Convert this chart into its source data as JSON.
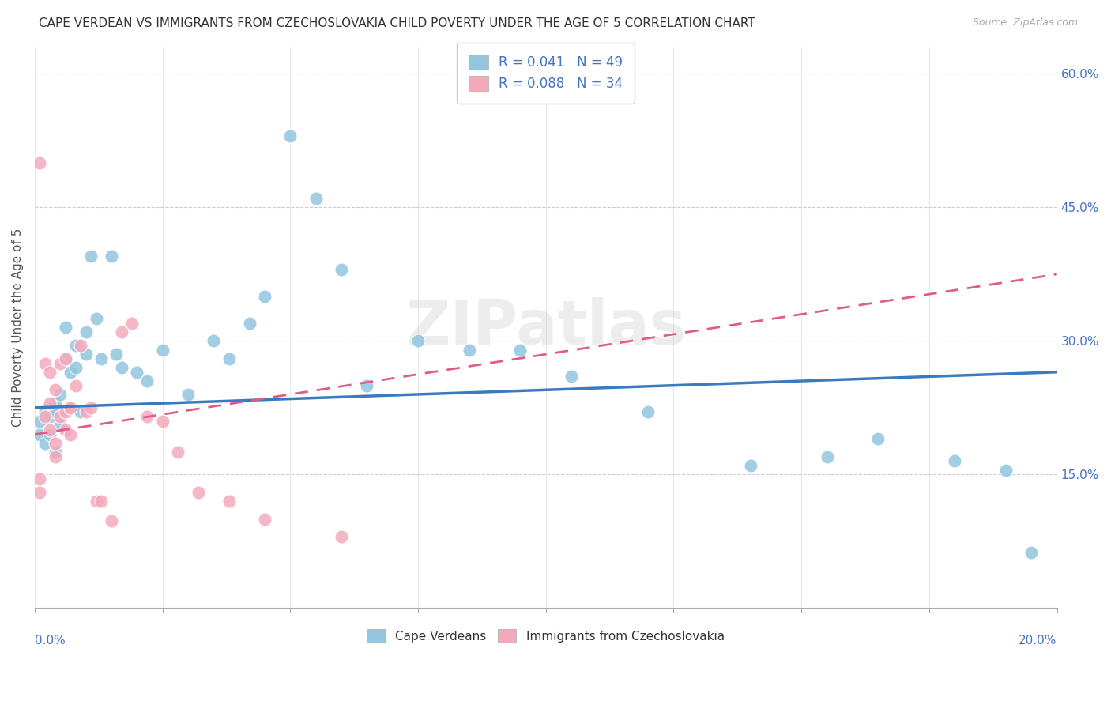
{
  "title": "CAPE VERDEAN VS IMMIGRANTS FROM CZECHOSLOVAKIA CHILD POVERTY UNDER THE AGE OF 5 CORRELATION CHART",
  "source": "Source: ZipAtlas.com",
  "ylabel": "Child Poverty Under the Age of 5",
  "legend1_label": "R = 0.041   N = 49",
  "legend2_label": "R = 0.088   N = 34",
  "legend_bottom_label1": "Cape Verdeans",
  "legend_bottom_label2": "Immigrants from Czechoslovakia",
  "blue_color": "#92c5de",
  "pink_color": "#f4a9bb",
  "blue_line_color": "#3a7bbf",
  "pink_line_color": "#e05a8a",
  "axis_label_color": "#4472c4",
  "watermark": "ZIPatlas",
  "blue_scatter_x": [
    0.001,
    0.001,
    0.002,
    0.002,
    0.003,
    0.003,
    0.004,
    0.004,
    0.004,
    0.005,
    0.005,
    0.006,
    0.006,
    0.007,
    0.007,
    0.008,
    0.008,
    0.009,
    0.01,
    0.01,
    0.011,
    0.012,
    0.013,
    0.015,
    0.016,
    0.017,
    0.02,
    0.022,
    0.025,
    0.03,
    0.035,
    0.038,
    0.042,
    0.045,
    0.05,
    0.055,
    0.06,
    0.065,
    0.075,
    0.085,
    0.095,
    0.105,
    0.12,
    0.14,
    0.155,
    0.165,
    0.18,
    0.19,
    0.195
  ],
  "blue_scatter_y": [
    0.21,
    0.195,
    0.22,
    0.185,
    0.215,
    0.195,
    0.23,
    0.175,
    0.22,
    0.205,
    0.24,
    0.315,
    0.28,
    0.265,
    0.225,
    0.295,
    0.27,
    0.22,
    0.31,
    0.285,
    0.395,
    0.325,
    0.28,
    0.395,
    0.285,
    0.27,
    0.265,
    0.255,
    0.29,
    0.24,
    0.3,
    0.28,
    0.32,
    0.35,
    0.53,
    0.46,
    0.38,
    0.25,
    0.3,
    0.29,
    0.29,
    0.26,
    0.22,
    0.16,
    0.17,
    0.19,
    0.165,
    0.155,
    0.062
  ],
  "pink_scatter_x": [
    0.001,
    0.001,
    0.001,
    0.002,
    0.002,
    0.003,
    0.003,
    0.003,
    0.004,
    0.004,
    0.004,
    0.005,
    0.005,
    0.006,
    0.006,
    0.006,
    0.007,
    0.007,
    0.008,
    0.009,
    0.01,
    0.011,
    0.012,
    0.013,
    0.015,
    0.017,
    0.019,
    0.022,
    0.025,
    0.028,
    0.032,
    0.038,
    0.045,
    0.06
  ],
  "pink_scatter_y": [
    0.5,
    0.145,
    0.13,
    0.275,
    0.215,
    0.265,
    0.23,
    0.2,
    0.245,
    0.185,
    0.17,
    0.275,
    0.215,
    0.28,
    0.22,
    0.2,
    0.225,
    0.195,
    0.25,
    0.295,
    0.22,
    0.225,
    0.12,
    0.12,
    0.098,
    0.31,
    0.32,
    0.215,
    0.21,
    0.175,
    0.13,
    0.12,
    0.1,
    0.08
  ],
  "xmin": 0.0,
  "xmax": 0.2,
  "ymin": 0.0,
  "ymax": 0.63
}
